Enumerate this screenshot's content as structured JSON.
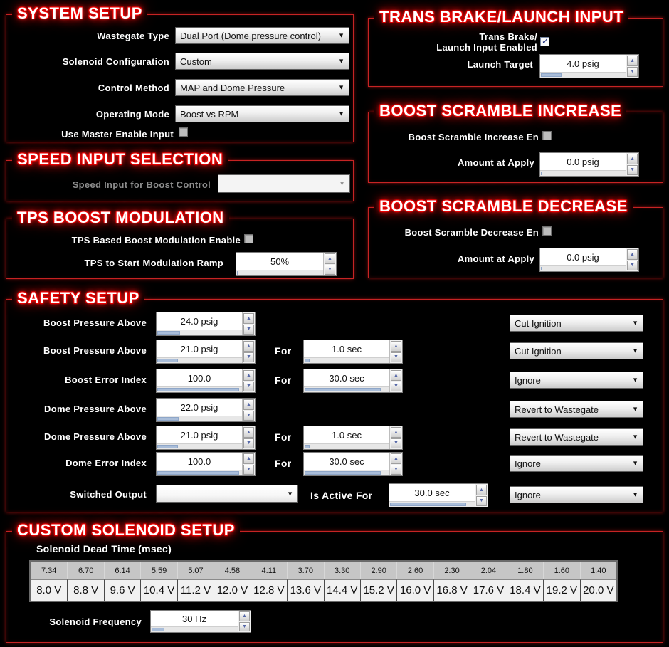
{
  "colors": {
    "background": "#000000",
    "section_border_red": "#c62424",
    "title_glow_red": "#ff1111",
    "slider_thumb_blue": "#a9bdd9",
    "spin_arrow_blue": "#5668a8",
    "check_blue": "#20307e"
  },
  "sections": {
    "system": {
      "title": "SYSTEM SETUP",
      "rows": [
        {
          "label": "Wastegate Type",
          "value": "Dual Port (Dome pressure control)"
        },
        {
          "label": "Solenoid Configuration",
          "value": "Custom"
        },
        {
          "label": "Control Method",
          "value": "MAP and Dome Pressure"
        },
        {
          "label": "Operating Mode",
          "value": "Boost vs RPM"
        }
      ],
      "checkbox_label": "Use Master Enable Input",
      "checkbox_checked": false
    },
    "trans_brake": {
      "title": "TRANS BRAKE/LAUNCH INPUT",
      "enable_label_line1": "Trans Brake/",
      "enable_label_line2": "Launch Input Enabled",
      "enable_checked": true,
      "target_label": "Launch Target",
      "target_value": "4.0 psig"
    },
    "speed": {
      "title": "SPEED INPUT SELECTION",
      "label": "Speed Input for Boost Control",
      "value": ""
    },
    "scramble_inc": {
      "title": "BOOST SCRAMBLE INCREASE",
      "enable_label": "Boost Scramble Increase En",
      "enable_checked": false,
      "amount_label": "Amount at Apply",
      "amount_value": "0.0 psig"
    },
    "tps": {
      "title": "TPS BOOST MODULATION",
      "enable_label": "TPS Based Boost Modulation Enable",
      "enable_checked": false,
      "ramp_label": "TPS to Start Modulation Ramp",
      "ramp_value": "50%"
    },
    "scramble_dec": {
      "title": "BOOST SCRAMBLE DECREASE",
      "enable_label": "Boost Scramble Decrease En",
      "enable_checked": false,
      "amount_label": "Amount at Apply",
      "amount_value": "0.0 psig"
    },
    "safety": {
      "title": "SAFETY SETUP",
      "for_label": "For",
      "is_active_for_label": "Is Active For",
      "rows": [
        {
          "label": "Boost Pressure Above",
          "value": "24.0 psig",
          "action": "Cut Ignition"
        },
        {
          "label": "Boost Pressure Above",
          "value": "21.0 psig",
          "for_value": "1.0 sec",
          "action": "Cut Ignition"
        },
        {
          "label": "Boost Error Index",
          "value": "100.0",
          "for_value": "30.0 sec",
          "action": "Ignore"
        },
        {
          "label": "Dome Pressure Above",
          "value": "22.0 psig",
          "action": "Revert to Wastegate"
        },
        {
          "label": "Dome Pressure Above",
          "value": "21.0 psig",
          "for_value": "1.0 sec",
          "action": "Revert to Wastegate"
        },
        {
          "label": "Dome Error Index",
          "value": "100.0",
          "for_value": "30.0 sec",
          "action": "Ignore"
        },
        {
          "label": "Switched Output",
          "value": "",
          "active_for_value": "30.0 sec",
          "action": "Ignore"
        }
      ]
    },
    "solenoid": {
      "title": "CUSTOM SOLENOID SETUP",
      "table_label": "Solenoid Dead Time (msec)",
      "dead_times": [
        "7.34",
        "6.70",
        "6.14",
        "5.59",
        "5.07",
        "4.58",
        "4.11",
        "3.70",
        "3.30",
        "2.90",
        "2.60",
        "2.30",
        "2.04",
        "1.80",
        "1.60",
        "1.40"
      ],
      "voltages": [
        "8.0 V",
        "8.8 V",
        "9.6 V",
        "10.4 V",
        "11.2 V",
        "12.0 V",
        "12.8 V",
        "13.6 V",
        "14.4 V",
        "15.2 V",
        "16.0 V",
        "16.8 V",
        "17.6 V",
        "18.4 V",
        "19.2 V",
        "20.0 V"
      ],
      "frequency_label": "Solenoid Frequency",
      "frequency_value": "30 Hz"
    }
  }
}
